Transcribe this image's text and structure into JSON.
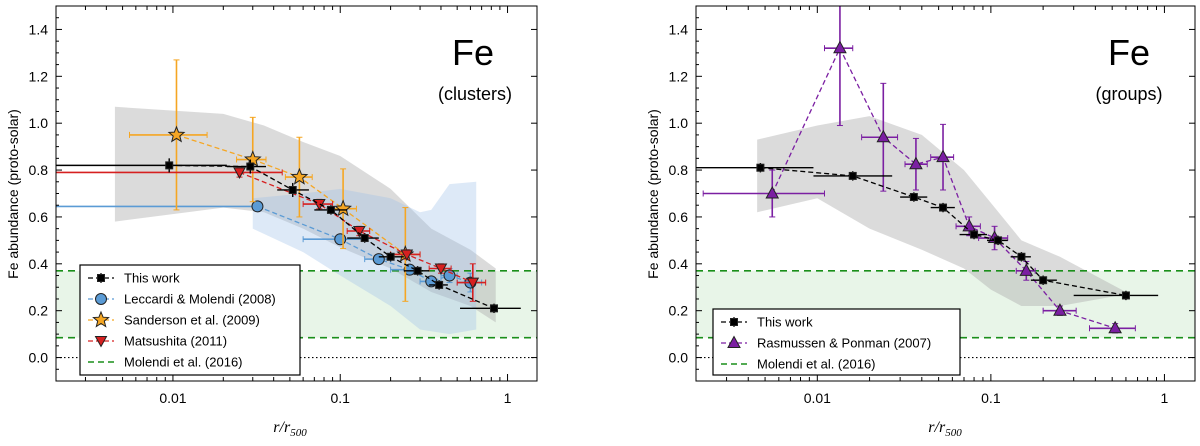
{
  "chart_data": [
    {
      "type": "scatter",
      "panel": "left",
      "title": "Fe",
      "subtitle": "(clusters)",
      "xlabel": "r/r",
      "xlabel_sub": "500",
      "ylabel": "Fe abundance (proto-solar)",
      "xscale": "log",
      "xlim": [
        0.002,
        1.5
      ],
      "ylim": [
        -0.1,
        1.5
      ],
      "xticks": [
        {
          "v": 0.01,
          "label": "0.01"
        },
        {
          "v": 0.1,
          "label": "0.1"
        },
        {
          "v": 1,
          "label": "1"
        }
      ],
      "yticks": [
        0.0,
        0.2,
        0.4,
        0.6,
        0.8,
        1.0,
        1.2,
        1.4
      ],
      "ytick_labels": [
        "0.0",
        "0.2",
        "0.4",
        "0.6",
        "0.8",
        "1.0",
        "1.2",
        "1.4"
      ],
      "band_molendi": [
        0.085,
        0.37
      ],
      "scatter_band": {
        "upper": [
          [
            0.0045,
            1.07
          ],
          [
            0.02,
            1.04
          ],
          [
            0.035,
            0.99
          ],
          [
            0.06,
            0.92
          ],
          [
            0.1,
            0.86
          ],
          [
            0.2,
            0.72
          ],
          [
            0.35,
            0.55
          ],
          [
            0.6,
            0.46
          ],
          [
            0.85,
            0.38
          ]
        ],
        "lower": [
          [
            0.0045,
            0.58
          ],
          [
            0.02,
            0.64
          ],
          [
            0.035,
            0.62
          ],
          [
            0.06,
            0.55
          ],
          [
            0.1,
            0.47
          ],
          [
            0.2,
            0.38
          ],
          [
            0.35,
            0.28
          ],
          [
            0.6,
            0.22
          ],
          [
            0.85,
            0.15
          ]
        ]
      },
      "blue_band": {
        "upper": [
          [
            0.03,
            0.68
          ],
          [
            0.06,
            0.7
          ],
          [
            0.1,
            0.72
          ],
          [
            0.2,
            0.68
          ],
          [
            0.3,
            0.62
          ],
          [
            0.35,
            0.63
          ],
          [
            0.45,
            0.74
          ],
          [
            0.65,
            0.75
          ]
        ],
        "lower": [
          [
            0.03,
            0.55
          ],
          [
            0.06,
            0.45
          ],
          [
            0.1,
            0.35
          ],
          [
            0.2,
            0.22
          ],
          [
            0.3,
            0.12
          ],
          [
            0.45,
            0.1
          ],
          [
            0.65,
            0.12
          ]
        ]
      },
      "series": [
        {
          "name": "This work",
          "color": "#000000",
          "marker": "square",
          "points": [
            {
              "x": 0.0095,
              "y": 0.82,
              "xlo": 0.002,
              "xhi": 0.021,
              "yerr": 0.03
            },
            {
              "x": 0.029,
              "y": 0.815,
              "xlo": 0.021,
              "xhi": 0.036,
              "yerr": 0.03
            },
            {
              "x": 0.052,
              "y": 0.715,
              "xlo": 0.042,
              "xhi": 0.065,
              "yerr": 0.03
            },
            {
              "x": 0.088,
              "y": 0.63,
              "xlo": 0.07,
              "xhi": 0.11,
              "yerr": 0.02
            },
            {
              "x": 0.14,
              "y": 0.51,
              "xlo": 0.11,
              "xhi": 0.17,
              "yerr": 0.02
            },
            {
              "x": 0.2,
              "y": 0.43,
              "xlo": 0.17,
              "xhi": 0.24,
              "yerr": 0.02
            },
            {
              "x": 0.29,
              "y": 0.37,
              "xlo": 0.24,
              "xhi": 0.34,
              "yerr": 0.02
            },
            {
              "x": 0.39,
              "y": 0.31,
              "xlo": 0.34,
              "xhi": 0.44,
              "yerr": 0.02
            },
            {
              "x": 0.83,
              "y": 0.21,
              "xlo": 0.52,
              "xhi": 1.2,
              "yerr": 0.02
            }
          ]
        },
        {
          "name": "Leccardi & Molendi (2008)",
          "color": "#5b9bd5",
          "marker": "circle",
          "points": [
            {
              "x": 0.032,
              "y": 0.645,
              "xlo": 0.002,
              "xhi": 0.032,
              "yerr": 0.01
            },
            {
              "x": 0.1,
              "y": 0.505,
              "xlo": 0.06,
              "xhi": 0.14,
              "yerr": 0.02
            },
            {
              "x": 0.17,
              "y": 0.42,
              "xlo": 0.14,
              "xhi": 0.2,
              "yerr": 0.02
            },
            {
              "x": 0.26,
              "y": 0.375,
              "xlo": 0.2,
              "xhi": 0.3,
              "yerr": 0.02
            },
            {
              "x": 0.35,
              "y": 0.325,
              "xlo": 0.3,
              "xhi": 0.4,
              "yerr": 0.02
            },
            {
              "x": 0.45,
              "y": 0.35,
              "xlo": 0.4,
              "xhi": 0.5,
              "yerr": 0.03
            },
            {
              "x": 0.6,
              "y": 0.32,
              "xlo": 0.5,
              "xhi": 0.7,
              "yerr": 0.04
            }
          ]
        },
        {
          "name": "Sanderson et al. (2009)",
          "color": "#f5a623",
          "marker": "star",
          "points": [
            {
              "x": 0.0105,
              "y": 0.95,
              "xlo": 0.0055,
              "xhi": 0.016,
              "yerr": 0.32
            },
            {
              "x": 0.03,
              "y": 0.845,
              "xlo": 0.024,
              "xhi": 0.036,
              "yerr": 0.18
            },
            {
              "x": 0.057,
              "y": 0.77,
              "xlo": 0.047,
              "xhi": 0.068,
              "yerr": 0.17
            },
            {
              "x": 0.104,
              "y": 0.635,
              "xlo": 0.085,
              "xhi": 0.125,
              "yerr": 0.17
            },
            {
              "x": 0.245,
              "y": 0.44,
              "xlo": 0.2,
              "xhi": 0.3,
              "yerr": 0.2
            }
          ]
        },
        {
          "name": "Matsushita (2011)",
          "color": "#d62020",
          "marker": "triangle-down",
          "points": [
            {
              "x": 0.025,
              "y": 0.79,
              "xlo": 0.002,
              "xhi": 0.045,
              "yerr": 0.02
            },
            {
              "x": 0.075,
              "y": 0.655,
              "xlo": 0.06,
              "xhi": 0.09,
              "yerr": 0.02
            },
            {
              "x": 0.13,
              "y": 0.54,
              "xlo": 0.11,
              "xhi": 0.15,
              "yerr": 0.02
            },
            {
              "x": 0.25,
              "y": 0.44,
              "xlo": 0.2,
              "xhi": 0.3,
              "yerr": 0.02
            },
            {
              "x": 0.4,
              "y": 0.38,
              "xlo": 0.34,
              "xhi": 0.46,
              "yerr": 0.02
            },
            {
              "x": 0.62,
              "y": 0.32,
              "xlo": 0.5,
              "xhi": 0.74,
              "yerr": 0.08
            }
          ]
        }
      ],
      "molendi": {
        "name": "Molendi et al. (2016)",
        "color": "#1a8f1a",
        "low": 0.085,
        "high": 0.37
      },
      "legend_position": "lower-left"
    },
    {
      "type": "scatter",
      "panel": "right",
      "title": "Fe",
      "subtitle": "(groups)",
      "xlabel": "r/r",
      "xlabel_sub": "500",
      "ylabel": "Fe abundance (proto-solar)",
      "xscale": "log",
      "xlim": [
        0.002,
        1.5
      ],
      "ylim": [
        -0.1,
        1.5
      ],
      "xticks": [
        {
          "v": 0.01,
          "label": "0.01"
        },
        {
          "v": 0.1,
          "label": "0.1"
        },
        {
          "v": 1,
          "label": "1"
        }
      ],
      "yticks": [
        0.0,
        0.2,
        0.4,
        0.6,
        0.8,
        1.0,
        1.2,
        1.4
      ],
      "ytick_labels": [
        "0.0",
        "0.2",
        "0.4",
        "0.6",
        "0.8",
        "1.0",
        "1.2",
        "1.4"
      ],
      "band_molendi": [
        0.085,
        0.37
      ],
      "scatter_band": {
        "upper": [
          [
            0.0045,
            0.93
          ],
          [
            0.01,
            0.99
          ],
          [
            0.02,
            1.03
          ],
          [
            0.04,
            0.95
          ],
          [
            0.07,
            0.8
          ],
          [
            0.1,
            0.66
          ],
          [
            0.15,
            0.5
          ],
          [
            0.25,
            0.43
          ],
          [
            0.6,
            0.28
          ]
        ],
        "lower": [
          [
            0.0045,
            0.62
          ],
          [
            0.01,
            0.68
          ],
          [
            0.02,
            0.55
          ],
          [
            0.04,
            0.46
          ],
          [
            0.07,
            0.38
          ],
          [
            0.1,
            0.29
          ],
          [
            0.15,
            0.22
          ],
          [
            0.25,
            0.22
          ],
          [
            0.6,
            0.27
          ]
        ]
      },
      "series": [
        {
          "name": "This work",
          "color": "#000000",
          "marker": "square",
          "points": [
            {
              "x": 0.0047,
              "y": 0.81,
              "xlo": 0.002,
              "xhi": 0.0095,
              "yerr": 0.02
            },
            {
              "x": 0.016,
              "y": 0.775,
              "xlo": 0.0095,
              "xhi": 0.027,
              "yerr": 0.02
            },
            {
              "x": 0.036,
              "y": 0.685,
              "xlo": 0.03,
              "xhi": 0.043,
              "yerr": 0.02
            },
            {
              "x": 0.053,
              "y": 0.64,
              "xlo": 0.045,
              "xhi": 0.062,
              "yerr": 0.02
            },
            {
              "x": 0.08,
              "y": 0.525,
              "xlo": 0.066,
              "xhi": 0.095,
              "yerr": 0.02
            },
            {
              "x": 0.11,
              "y": 0.5,
              "xlo": 0.095,
              "xhi": 0.125,
              "yerr": 0.02
            },
            {
              "x": 0.15,
              "y": 0.43,
              "xlo": 0.13,
              "xhi": 0.17,
              "yerr": 0.02
            },
            {
              "x": 0.2,
              "y": 0.33,
              "xlo": 0.17,
              "xhi": 0.24,
              "yerr": 0.02
            },
            {
              "x": 0.6,
              "y": 0.265,
              "xlo": 0.3,
              "xhi": 0.92,
              "yerr": 0.02
            }
          ]
        },
        {
          "name": "Rasmussen & Ponman (2007)",
          "color": "#7b1fa2",
          "marker": "triangle",
          "points": [
            {
              "x": 0.0055,
              "y": 0.7,
              "xlo": 0.0022,
              "xhi": 0.011,
              "yerr": 0.1
            },
            {
              "x": 0.0135,
              "y": 1.32,
              "xlo": 0.011,
              "xhi": 0.016,
              "yerr": 0.33
            },
            {
              "x": 0.024,
              "y": 0.94,
              "xlo": 0.018,
              "xhi": 0.029,
              "yerr": 0.23
            },
            {
              "x": 0.037,
              "y": 0.825,
              "xlo": 0.032,
              "xhi": 0.043,
              "yerr": 0.11
            },
            {
              "x": 0.053,
              "y": 0.855,
              "xlo": 0.045,
              "xhi": 0.061,
              "yerr": 0.14
            },
            {
              "x": 0.075,
              "y": 0.56,
              "xlo": 0.063,
              "xhi": 0.087,
              "yerr": 0.04
            },
            {
              "x": 0.105,
              "y": 0.51,
              "xlo": 0.085,
              "xhi": 0.125,
              "yerr": 0.05
            },
            {
              "x": 0.16,
              "y": 0.37,
              "xlo": 0.14,
              "xhi": 0.18,
              "yerr": 0.04
            },
            {
              "x": 0.25,
              "y": 0.2,
              "xlo": 0.2,
              "xhi": 0.31,
              "yerr": 0.02
            },
            {
              "x": 0.52,
              "y": 0.125,
              "xlo": 0.37,
              "xhi": 0.68,
              "yerr": 0.02
            }
          ]
        }
      ],
      "molendi": {
        "name": "Molendi et al. (2016)",
        "color": "#1a8f1a",
        "low": 0.085,
        "high": 0.37
      },
      "legend_position": "lower-left"
    }
  ]
}
